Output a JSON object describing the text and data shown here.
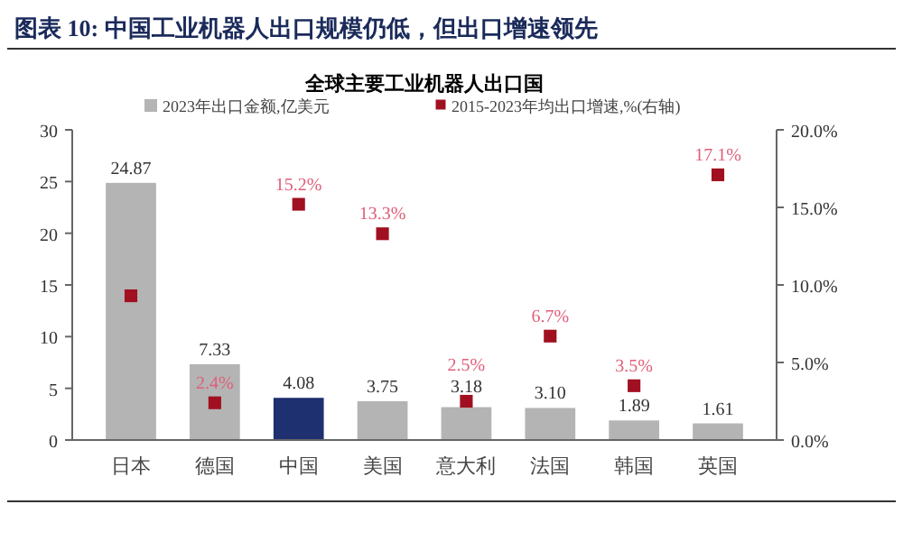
{
  "chart_data": {
    "type": "bar",
    "title": "图表 10: 中国工业机器人出口规模仍低，但出口增速领先",
    "subtitle": "全球主要工业机器人出口国",
    "categories": [
      "日本",
      "德国",
      "中国",
      "美国",
      "意大利",
      "法国",
      "韩国",
      "英国"
    ],
    "series": [
      {
        "name": "2023年出口金额,亿美元",
        "type": "bar",
        "color": "#b4b4b4",
        "colors": [
          "#b4b4b4",
          "#b4b4b4",
          "#1f3070",
          "#b4b4b4",
          "#b4b4b4",
          "#b4b4b4",
          "#b4b4b4",
          "#b4b4b4"
        ],
        "values": [
          24.87,
          7.33,
          4.08,
          3.75,
          3.18,
          3.1,
          1.89,
          1.61
        ],
        "value_labels": [
          "24.87",
          "7.33",
          "4.08",
          "3.75",
          "3.18",
          "3.10",
          "1.89",
          "1.61"
        ]
      },
      {
        "name": "2015-2023年均出口增速,%(右轴)",
        "type": "scatter",
        "axis": "y2",
        "color": "#a01020",
        "values": [
          9.3,
          2.4,
          15.2,
          13.3,
          2.5,
          6.7,
          3.5,
          17.1
        ],
        "value_labels": [
          null,
          "2.4%",
          "15.2%",
          "13.3%",
          "2.5%",
          "6.7%",
          "3.5%",
          "17.1%"
        ]
      }
    ],
    "ylim": [
      0,
      30
    ],
    "yticks": [
      0,
      5,
      10,
      15,
      20,
      25,
      30
    ],
    "y2lim": [
      0,
      20
    ],
    "y2ticks": [
      {
        "value": 0,
        "label": "0.0%"
      },
      {
        "value": 5,
        "label": "5.0%"
      },
      {
        "value": 10,
        "label": "10.0%"
      },
      {
        "value": 15,
        "label": "15.0%"
      },
      {
        "value": 20,
        "label": "20.0%"
      }
    ],
    "legend": "top",
    "grid": false,
    "marker": "square"
  }
}
